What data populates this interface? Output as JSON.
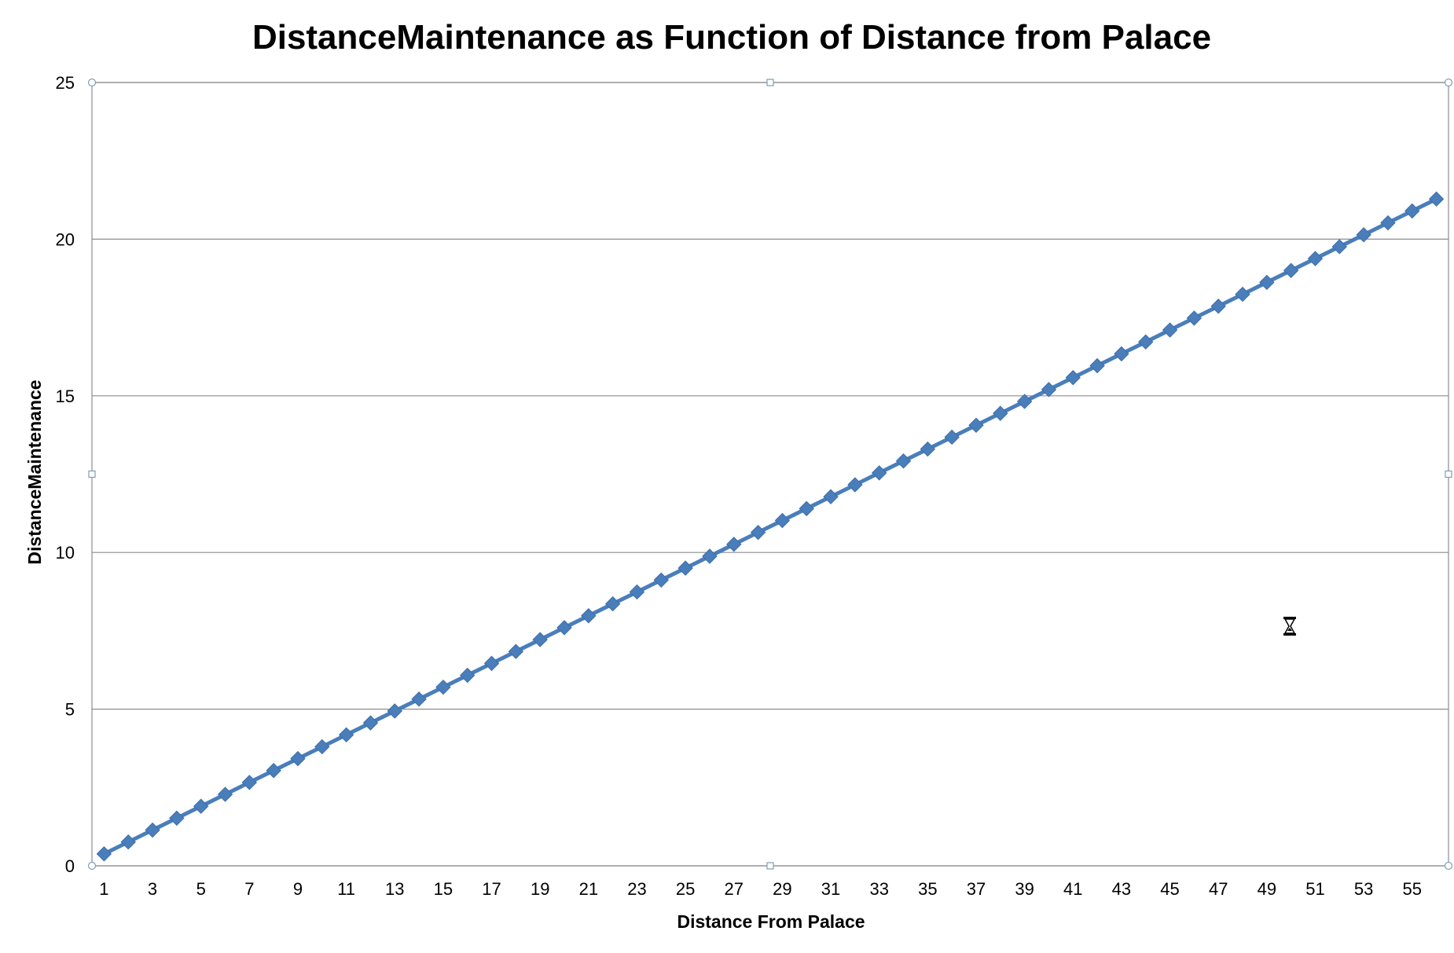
{
  "chart_data": {
    "type": "line",
    "title": "DistanceMaintenance as Function of Distance from Palace",
    "xlabel": "Distance From Palace",
    "ylabel": "DistanceMaintenance",
    "x": [
      1,
      2,
      3,
      4,
      5,
      6,
      7,
      8,
      9,
      10,
      11,
      12,
      13,
      14,
      15,
      16,
      17,
      18,
      19,
      20,
      21,
      22,
      23,
      24,
      25,
      26,
      27,
      28,
      29,
      30,
      31,
      32,
      33,
      34,
      35,
      36,
      37,
      38,
      39,
      40,
      41,
      42,
      43,
      44,
      45,
      46,
      47,
      48,
      49,
      50,
      51,
      52,
      53,
      54,
      55,
      56
    ],
    "x_tick_labels": [
      "1",
      "3",
      "5",
      "7",
      "9",
      "11",
      "13",
      "15",
      "17",
      "19",
      "21",
      "23",
      "25",
      "27",
      "29",
      "31",
      "33",
      "35",
      "37",
      "39",
      "41",
      "43",
      "45",
      "47",
      "49",
      "51",
      "53",
      "55"
    ],
    "y_tick_labels": [
      "0",
      "5",
      "10",
      "15",
      "20",
      "25"
    ],
    "ylim": [
      0,
      25
    ],
    "grid": true,
    "legend": "none",
    "series": [
      {
        "color": "#4a7ebb",
        "marker": "diamond",
        "values": [
          0.38,
          0.76,
          1.14,
          1.52,
          1.9,
          2.28,
          2.66,
          3.04,
          3.42,
          3.8,
          4.18,
          4.56,
          4.94,
          5.32,
          5.7,
          6.08,
          6.46,
          6.84,
          7.22,
          7.6,
          7.98,
          8.36,
          8.74,
          9.12,
          9.5,
          9.88,
          10.26,
          10.64,
          11.02,
          11.4,
          11.78,
          12.16,
          12.54,
          12.92,
          13.3,
          13.68,
          14.06,
          14.44,
          14.82,
          15.2,
          15.58,
          15.96,
          16.34,
          16.72,
          17.1,
          17.48,
          17.86,
          18.24,
          18.62,
          19.0,
          19.38,
          19.76,
          20.14,
          20.52,
          20.9,
          21.28
        ]
      }
    ]
  },
  "cursor": {
    "icon": "hourglass-icon"
  }
}
